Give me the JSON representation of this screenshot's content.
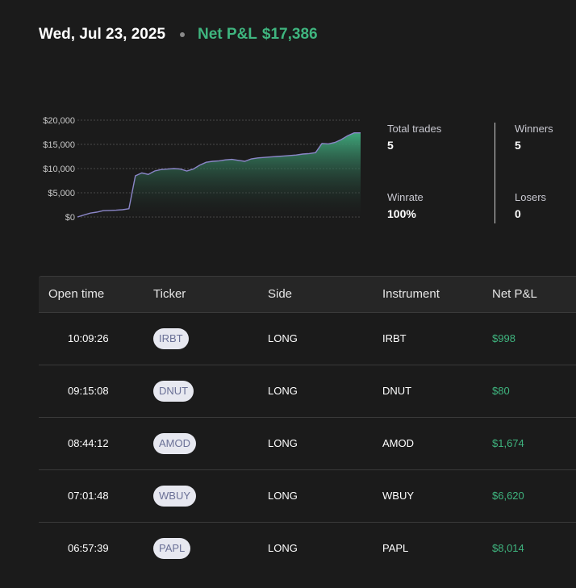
{
  "header": {
    "date": "Wed, Jul 23, 2025",
    "pnl_label": "Net P&L",
    "pnl_value": "$17,386"
  },
  "colors": {
    "background": "#1b1b1b",
    "positive": "#3fb57f",
    "chart_line": "#8b86c8",
    "badge_bg": "#e7e8f0",
    "badge_text": "#6a7096"
  },
  "chart_data": {
    "type": "area",
    "x": [
      0,
      1,
      2,
      3,
      4,
      5,
      6,
      7,
      8,
      9,
      10,
      11,
      12,
      13,
      14,
      15,
      16,
      17,
      18,
      19,
      20,
      21,
      22,
      23,
      24,
      25,
      26,
      27,
      28,
      29,
      30,
      31,
      32,
      33,
      34,
      35,
      36,
      37,
      38,
      39,
      40,
      41,
      42,
      43,
      44
    ],
    "values": [
      0,
      400,
      800,
      1000,
      1300,
      1350,
      1400,
      1500,
      1700,
      8500,
      9100,
      8800,
      9500,
      9800,
      9900,
      10000,
      9900,
      9500,
      9900,
      10700,
      11300,
      11500,
      11600,
      11800,
      11900,
      11700,
      11500,
      12000,
      12200,
      12300,
      12400,
      12500,
      12600,
      12700,
      12800,
      13000,
      13100,
      13300,
      15200,
      15100,
      15400,
      16000,
      16800,
      17386,
      17386
    ],
    "yticks": [
      "$20,000",
      "$15,000",
      "$10,000",
      "$5,000",
      "$0"
    ],
    "ylim": [
      0,
      20000
    ],
    "grid": true
  },
  "stats": {
    "total_trades_label": "Total trades",
    "total_trades_value": "5",
    "winners_label": "Winners",
    "winners_value": "5",
    "winrate_label": "Winrate",
    "winrate_value": "100%",
    "losers_label": "Losers",
    "losers_value": "0"
  },
  "table": {
    "headers": {
      "open_time": "Open time",
      "ticker": "Ticker",
      "side": "Side",
      "instrument": "Instrument",
      "net_pnl": "Net P&L"
    },
    "rows": [
      {
        "time": "10:09:26",
        "ticker": "IRBT",
        "side": "LONG",
        "instrument": "IRBT",
        "pnl": "$998"
      },
      {
        "time": "09:15:08",
        "ticker": "DNUT",
        "side": "LONG",
        "instrument": "DNUT",
        "pnl": "$80"
      },
      {
        "time": "08:44:12",
        "ticker": "AMOD",
        "side": "LONG",
        "instrument": "AMOD",
        "pnl": "$1,674"
      },
      {
        "time": "07:01:48",
        "ticker": "WBUY",
        "side": "LONG",
        "instrument": "WBUY",
        "pnl": "$6,620"
      },
      {
        "time": "06:57:39",
        "ticker": "PAPL",
        "side": "LONG",
        "instrument": "PAPL",
        "pnl": "$8,014"
      }
    ]
  }
}
